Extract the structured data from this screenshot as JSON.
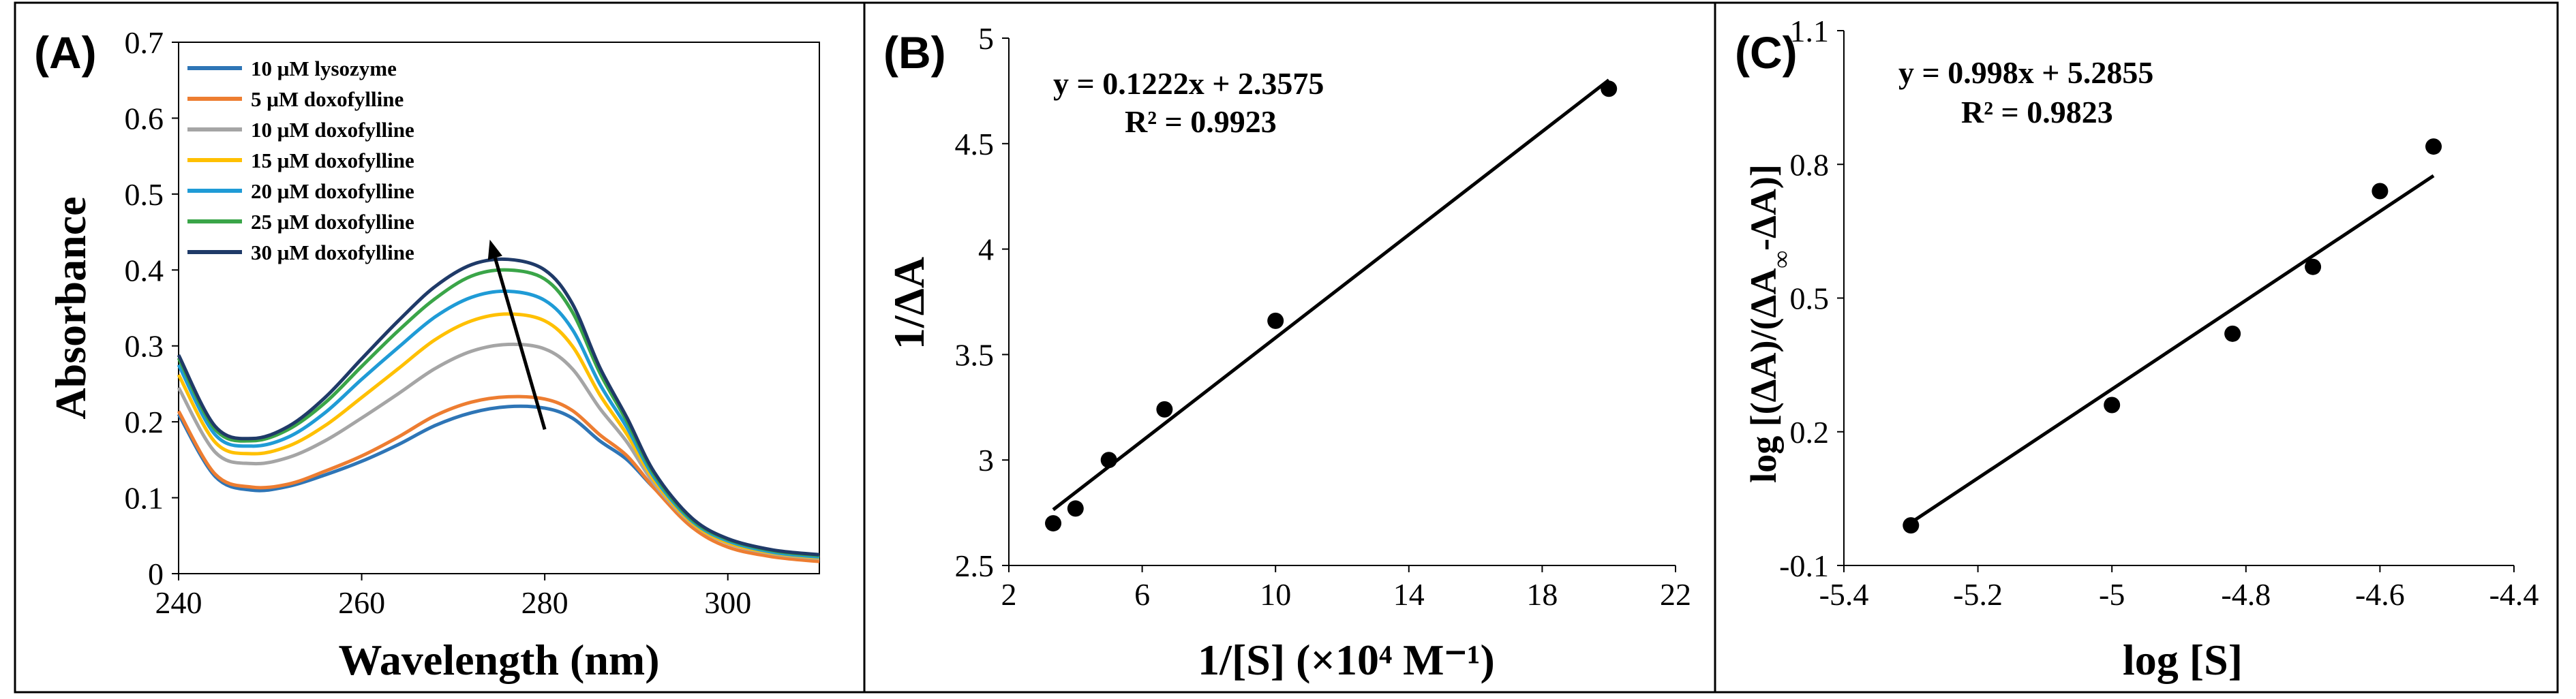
{
  "figure": {
    "panels": [
      {
        "label": "(A)"
      },
      {
        "label": "(B)"
      },
      {
        "label": "(C)"
      }
    ]
  },
  "chart_data": [
    {
      "type": "line",
      "panel": "(A)",
      "xlabel": "Wavelength (nm)",
      "ylabel": "Absorbance",
      "xlim": [
        240,
        310
      ],
      "ylim": [
        0,
        0.7
      ],
      "xticks": [
        "240",
        "260",
        "280",
        "300"
      ],
      "yticks": [
        "0",
        "0.1",
        "0.2",
        "0.3",
        "0.4",
        "0.5",
        "0.6",
        "0.7"
      ],
      "xtick_values": [
        240,
        260,
        280,
        300
      ],
      "ytick_values": [
        0,
        0.1,
        0.2,
        0.3,
        0.4,
        0.5,
        0.6,
        0.7
      ],
      "legend_position": "top-left",
      "annotation": "arrow indicating increasing absorbance with doxofylline concentration",
      "arrow": {
        "from": [
          280,
          0.19
        ],
        "to": [
          274,
          0.44
        ]
      },
      "x": [
        240,
        244,
        248,
        252,
        256,
        260,
        264,
        268,
        272,
        276,
        280,
        283,
        286,
        289,
        292,
        296,
        300,
        305,
        310
      ],
      "series": [
        {
          "name": "10 μM lysozyme",
          "color": "#2e75b6",
          "values": [
            0.21,
            0.128,
            0.11,
            0.115,
            0.13,
            0.148,
            0.17,
            0.195,
            0.212,
            0.22,
            0.218,
            0.205,
            0.175,
            0.15,
            0.112,
            0.068,
            0.042,
            0.028,
            0.022
          ]
        },
        {
          "name": "5 μM doxofylline",
          "color": "#ed7d31",
          "values": [
            0.214,
            0.131,
            0.114,
            0.118,
            0.135,
            0.155,
            0.18,
            0.208,
            0.226,
            0.233,
            0.23,
            0.215,
            0.183,
            0.155,
            0.112,
            0.062,
            0.035,
            0.022,
            0.016
          ]
        },
        {
          "name": "10 μM doxofylline",
          "color": "#a5a5a5",
          "values": [
            0.245,
            0.16,
            0.145,
            0.153,
            0.175,
            0.205,
            0.237,
            0.27,
            0.293,
            0.302,
            0.296,
            0.27,
            0.218,
            0.173,
            0.118,
            0.067,
            0.04,
            0.026,
            0.02
          ]
        },
        {
          "name": "15 μM doxofylline",
          "color": "#ffc000",
          "values": [
            0.262,
            0.173,
            0.158,
            0.168,
            0.195,
            0.232,
            0.27,
            0.308,
            0.333,
            0.342,
            0.333,
            0.3,
            0.236,
            0.183,
            0.122,
            0.068,
            0.041,
            0.027,
            0.021
          ]
        },
        {
          "name": "20 μM doxofylline",
          "color": "#1f9bd6",
          "values": [
            0.275,
            0.183,
            0.168,
            0.18,
            0.212,
            0.256,
            0.298,
            0.338,
            0.364,
            0.372,
            0.36,
            0.322,
            0.25,
            0.192,
            0.126,
            0.07,
            0.043,
            0.028,
            0.022
          ]
        },
        {
          "name": "25 μM doxofylline",
          "color": "#3aa548",
          "values": [
            0.284,
            0.19,
            0.175,
            0.19,
            0.225,
            0.273,
            0.32,
            0.362,
            0.392,
            0.4,
            0.388,
            0.345,
            0.265,
            0.2,
            0.13,
            0.072,
            0.045,
            0.03,
            0.024
          ]
        },
        {
          "name": "30 μM doxofylline",
          "color": "#1f3a68",
          "values": [
            0.288,
            0.194,
            0.178,
            0.194,
            0.232,
            0.283,
            0.333,
            0.378,
            0.407,
            0.414,
            0.4,
            0.356,
            0.272,
            0.205,
            0.133,
            0.074,
            0.046,
            0.031,
            0.025
          ]
        }
      ]
    },
    {
      "type": "scatter",
      "panel": "(B)",
      "xlabel": "1/[S] (×10⁴ M⁻¹)",
      "ylabel": "1/ΔA",
      "xlim": [
        2,
        22
      ],
      "ylim": [
        2.5,
        5
      ],
      "xticks": [
        "2",
        "6",
        "10",
        "14",
        "18",
        "22"
      ],
      "yticks": [
        "2.5",
        "3",
        "3.5",
        "4",
        "4.5",
        "5"
      ],
      "xtick_values": [
        2,
        6,
        10,
        14,
        18,
        22
      ],
      "ytick_values": [
        2.5,
        3,
        3.5,
        4,
        4.5,
        5
      ],
      "equation": "y = 0.1222x + 2.3575",
      "r2": "R² = 0.9923",
      "fit": {
        "slope": 0.1222,
        "intercept": 2.3575,
        "x_range": [
          3.33,
          20
        ]
      },
      "x": [
        3.33,
        4,
        5,
        6.67,
        10,
        20
      ],
      "y": [
        2.7,
        2.77,
        3.0,
        3.24,
        3.66,
        4.76
      ]
    },
    {
      "type": "scatter",
      "panel": "(C)",
      "xlabel": "log [S]",
      "ylabel_parts": [
        "log [(ΔA)/(ΔA",
        "∞",
        "-ΔA)]"
      ],
      "xlim": [
        -5.4,
        -4.4
      ],
      "ylim": [
        -0.1,
        1.1
      ],
      "xticks": [
        "-5.4",
        "-5.2",
        "-5",
        "-4.8",
        "-4.6",
        "-4.4"
      ],
      "yticks": [
        "-0.1",
        "0.2",
        "0.5",
        "0.8",
        "1.1"
      ],
      "xtick_values": [
        -5.4,
        -5.2,
        -5.0,
        -4.8,
        -4.6,
        -4.4
      ],
      "ytick_values": [
        -0.1,
        0.2,
        0.5,
        0.8,
        1.1
      ],
      "equation": "y = 0.998x + 5.2855",
      "r2": "R² = 0.9823",
      "fit": {
        "slope": 0.998,
        "intercept": 5.2855,
        "x_range": [
          -5.3,
          -4.52
        ]
      },
      "x": [
        -5.3,
        -5.0,
        -4.82,
        -4.7,
        -4.6,
        -4.52
      ],
      "y": [
        -0.01,
        0.26,
        0.42,
        0.57,
        0.74,
        0.84
      ]
    }
  ]
}
